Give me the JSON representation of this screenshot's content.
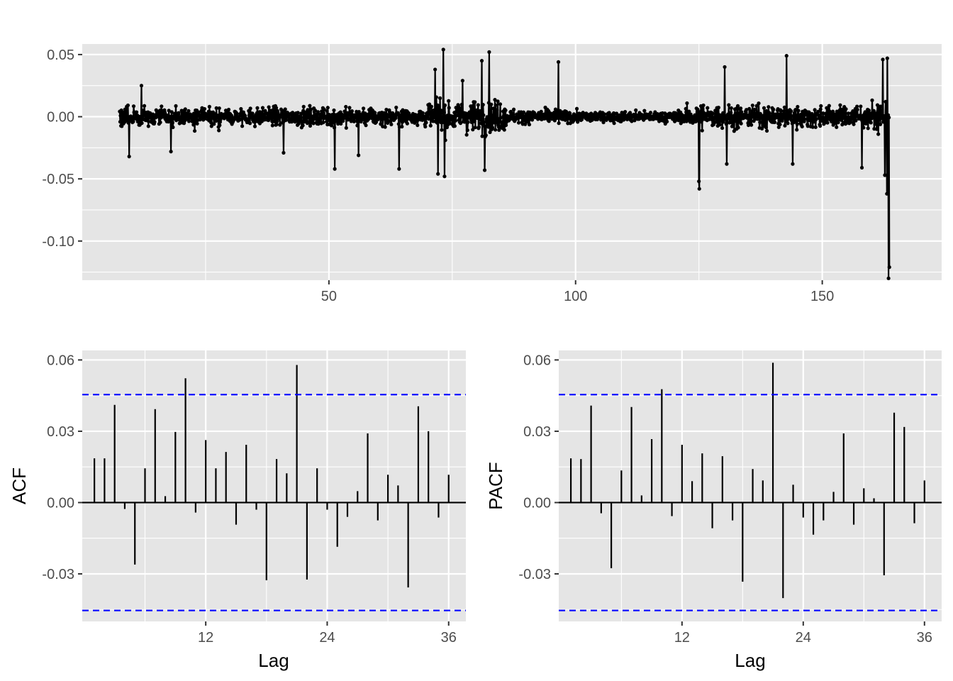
{
  "colors": {
    "panel_bg": "#e5e5e5",
    "grid_major": "#ffffff",
    "series": "#000000",
    "ci_line": "#0000ff",
    "tick_text": "#4d4d4d"
  },
  "chart_data": [
    {
      "type": "line",
      "panel": "time-series",
      "title": "",
      "xlabel": "",
      "ylabel": "",
      "markers": true,
      "grid": true,
      "xlim": [
        0,
        174.2
      ],
      "ylim": [
        -0.1315,
        0.0585
      ],
      "x_ticks": [
        50,
        100,
        150
      ],
      "x_tick_labels": [
        "50",
        "100",
        "150"
      ],
      "y_ticks": [
        0.05,
        0.0,
        -0.05,
        -0.1
      ],
      "y_tick_labels": [
        "0.05",
        "0.00",
        "-0.05",
        "-0.10"
      ],
      "x_start": 7.6,
      "x_end": 163.6,
      "n_points": 1880,
      "noise_amplitude": 0.011,
      "highlights": [
        {
          "x": 9.5,
          "y": -0.032
        },
        {
          "x": 12.0,
          "y": 0.025
        },
        {
          "x": 18.0,
          "y": -0.028
        },
        {
          "x": 40.8,
          "y": -0.029
        },
        {
          "x": 51.2,
          "y": -0.042
        },
        {
          "x": 56.0,
          "y": -0.031
        },
        {
          "x": 64.2,
          "y": -0.042
        },
        {
          "x": 71.5,
          "y": 0.038
        },
        {
          "x": 72.1,
          "y": -0.046
        },
        {
          "x": 73.2,
          "y": 0.054
        },
        {
          "x": 73.4,
          "y": -0.048
        },
        {
          "x": 77.1,
          "y": 0.029
        },
        {
          "x": 81.0,
          "y": 0.045
        },
        {
          "x": 81.6,
          "y": -0.043
        },
        {
          "x": 82.5,
          "y": 0.052
        },
        {
          "x": 96.5,
          "y": 0.044
        },
        {
          "x": 125.0,
          "y": -0.052
        },
        {
          "x": 125.1,
          "y": -0.058
        },
        {
          "x": 130.2,
          "y": 0.04
        },
        {
          "x": 130.6,
          "y": -0.038
        },
        {
          "x": 142.8,
          "y": 0.049
        },
        {
          "x": 144.0,
          "y": -0.038
        },
        {
          "x": 158.0,
          "y": -0.041
        },
        {
          "x": 162.3,
          "y": 0.046
        },
        {
          "x": 162.7,
          "y": -0.047
        },
        {
          "x": 163.1,
          "y": -0.062
        },
        {
          "x": 163.2,
          "y": 0.047
        },
        {
          "x": 163.4,
          "y": -0.13
        },
        {
          "x": 163.6,
          "y": -0.121
        }
      ]
    },
    {
      "type": "bar",
      "panel": "acf",
      "xlabel": "Lag",
      "ylabel": "ACF",
      "grid": true,
      "xlim": [
        -0.2,
        37.7
      ],
      "ylim": [
        -0.05,
        0.064
      ],
      "x_ticks": [
        12,
        24,
        36
      ],
      "x_tick_labels": [
        "12",
        "24",
        "36"
      ],
      "y_ticks": [
        0.06,
        0.03,
        0.0,
        -0.03
      ],
      "y_tick_labels": [
        "0.06",
        "0.03",
        "0.00",
        "-0.03"
      ],
      "ci": 0.0454,
      "lags": [
        1,
        2,
        3,
        4,
        5,
        6,
        7,
        8,
        9,
        10,
        11,
        12,
        13,
        14,
        15,
        16,
        17,
        18,
        19,
        20,
        21,
        22,
        23,
        24,
        25,
        26,
        27,
        28,
        29,
        30,
        31,
        32,
        33,
        34,
        35,
        36
      ],
      "values": [
        0.0186,
        0.0186,
        0.0411,
        -0.0027,
        -0.0261,
        0.0144,
        0.0393,
        0.0027,
        0.0297,
        0.0523,
        -0.0042,
        0.0263,
        0.0144,
        0.0213,
        -0.0093,
        0.0243,
        -0.003,
        -0.0327,
        0.0183,
        0.0123,
        0.0579,
        -0.0324,
        0.0144,
        -0.003,
        -0.0186,
        -0.006,
        0.0048,
        0.0291,
        -0.0075,
        0.0117,
        0.0072,
        -0.0357,
        0.0405,
        0.03,
        -0.0063,
        0.0117
      ]
    },
    {
      "type": "bar",
      "panel": "pacf",
      "xlabel": "Lag",
      "ylabel": "PACF",
      "grid": true,
      "xlim": [
        -0.2,
        37.7
      ],
      "ylim": [
        -0.05,
        0.064
      ],
      "x_ticks": [
        12,
        24,
        36
      ],
      "x_tick_labels": [
        "12",
        "24",
        "36"
      ],
      "y_ticks": [
        0.06,
        0.03,
        0.0,
        -0.03
      ],
      "y_tick_labels": [
        "0.06",
        "0.03",
        "0.00",
        "-0.03"
      ],
      "ci": 0.0454,
      "lags": [
        1,
        2,
        3,
        4,
        5,
        6,
        7,
        8,
        9,
        10,
        11,
        12,
        13,
        14,
        15,
        16,
        17,
        18,
        19,
        20,
        21,
        22,
        23,
        24,
        25,
        26,
        27,
        28,
        29,
        30,
        31,
        32,
        33,
        34,
        35,
        36
      ],
      "values": [
        0.0186,
        0.0183,
        0.0408,
        -0.0045,
        -0.0276,
        0.0135,
        0.0402,
        0.003,
        0.0267,
        0.0477,
        -0.0057,
        0.0243,
        0.009,
        0.0207,
        -0.0108,
        0.0195,
        -0.0075,
        -0.0333,
        0.0141,
        0.0093,
        0.0588,
        -0.0402,
        0.0075,
        -0.0063,
        -0.0135,
        -0.0075,
        0.0045,
        0.0291,
        -0.0093,
        0.006,
        0.0018,
        -0.0306,
        0.0378,
        0.0318,
        -0.0087,
        0.0093
      ]
    }
  ]
}
